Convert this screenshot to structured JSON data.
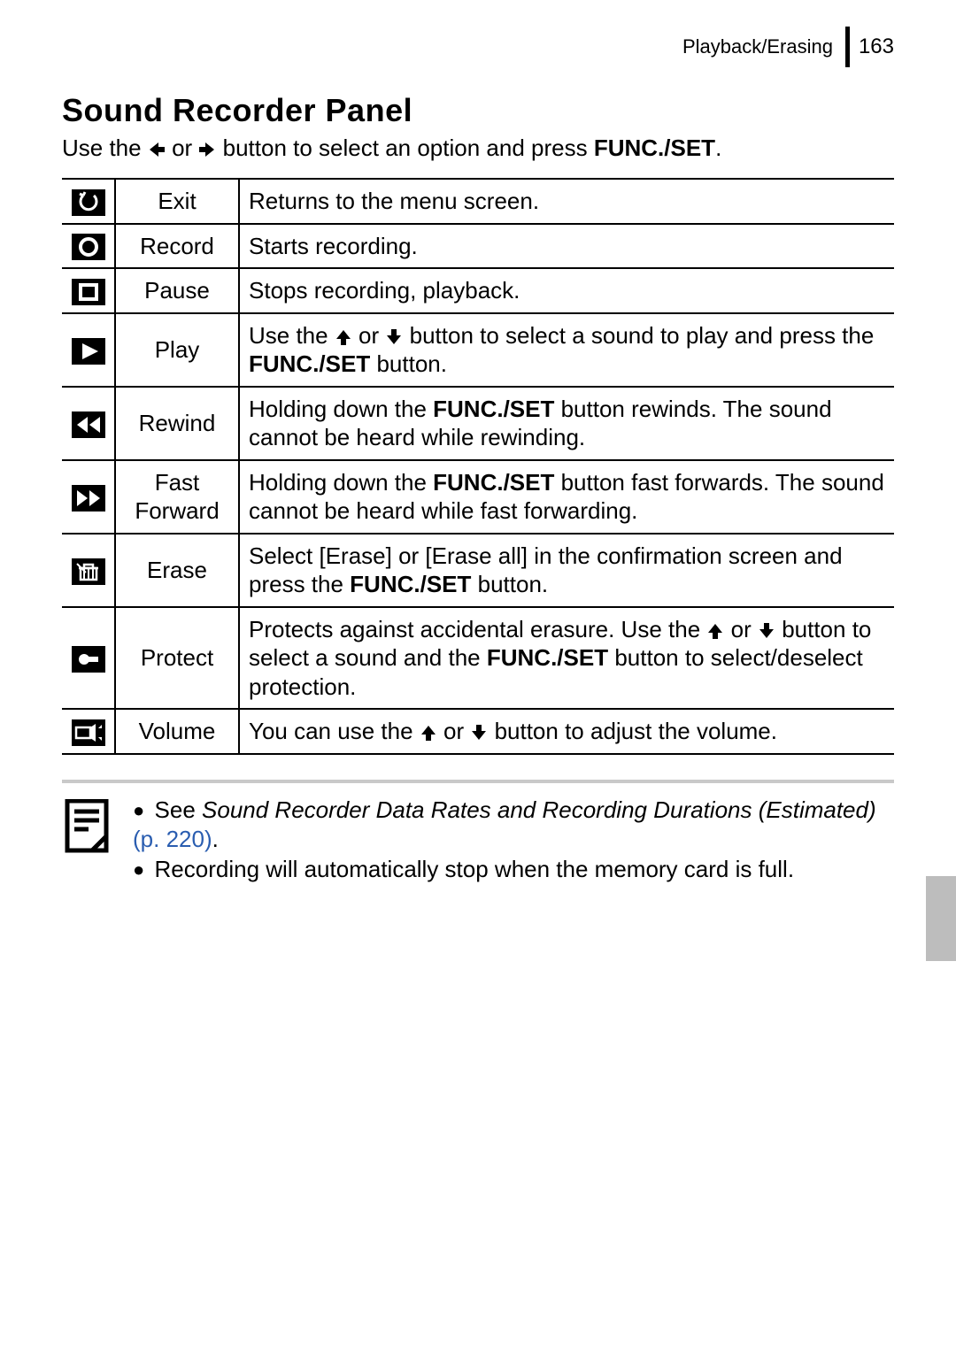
{
  "header": {
    "section": "Playback/Erasing",
    "page_number": "163"
  },
  "title": "Sound Recorder Panel",
  "intro": {
    "pre": "Use the ",
    "mid": " or ",
    "post": " button to select an option and press ",
    "func": "FUNC./SET",
    "end": "."
  },
  "rows": [
    {
      "label": "Exit",
      "desc_html": "Returns to the menu screen."
    },
    {
      "label": "Record",
      "desc_html": "Starts recording."
    },
    {
      "label": "Pause",
      "desc_html": "Stops recording, playback."
    },
    {
      "label": "Play",
      "desc_html": "Use the {UP} or {DOWN} button to select a sound to play and press the <b>FUNC./SET</b> button."
    },
    {
      "label": "Rewind",
      "desc_html": "Holding down the <b>FUNC./SET</b> button rewinds. The sound cannot be heard while rewinding."
    },
    {
      "label": "Fast Forward",
      "desc_html": "Holding down the <b>FUNC./SET</b> button fast forwards. The sound cannot be heard while fast forwarding."
    },
    {
      "label": "Erase",
      "desc_html": "Select [Erase] or [Erase all] in the confirmation screen and press the <b>FUNC./SET</b> button."
    },
    {
      "label": "Protect",
      "desc_html": "Protects against accidental erasure. Use the {UP} or {DOWN} button to select a sound and the <b>FUNC./SET</b> button to select/deselect protection."
    },
    {
      "label": "Volume",
      "desc_html": "You can use the {UP} or {DOWN} button to adjust the volume."
    }
  ],
  "notes": {
    "n1_pre": "See ",
    "n1_italic": "Sound Recorder Data Rates and Recording Durations (Estimated)",
    "n1_link": " (p. 220)",
    "n1_end": ".",
    "n2": "Recording will automatically stop when the memory card is full."
  },
  "icons": {
    "exit": "<svg viewBox='0 0 38 30' width='38' height='30'><rect width='38' height='30' fill='#000'/><path d='M13 7 A9 9 0 1 0 25 7' fill='none' stroke='#fff' stroke-width='3'/><path d='M13 7 L9 5 M13 7 L15 3' stroke='#fff' stroke-width='3' fill='none'/></svg>",
    "record": "<svg viewBox='0 0 38 30' width='38' height='30'><rect width='38' height='30' fill='#000'/><circle cx='19' cy='15' r='9' fill='none' stroke='#fff' stroke-width='4'/></svg>",
    "pause": "<svg viewBox='0 0 38 30' width='38' height='30'><rect width='38' height='30' fill='#000'/><rect x='10' y='7' width='18' height='16' fill='none' stroke='#fff' stroke-width='4'/></svg>",
    "play": "<svg viewBox='0 0 38 30' width='38' height='30'><rect width='38' height='30' fill='#000'/><polygon points='12,6 30,15 12,24' fill='#fff'/></svg>",
    "rewind": "<svg viewBox='0 0 38 30' width='38' height='30'><rect width='38' height='30' fill='#000'/><polygon points='18,6 6,15 18,24' fill='#fff'/><polygon points='32,6 20,15 32,24' fill='#fff'/></svg>",
    "fastforward": "<svg viewBox='0 0 38 30' width='38' height='30'><rect width='38' height='30' fill='#000'/><polygon points='6,6 18,15 6,24' fill='#fff'/><polygon points='20,6 32,15 20,24' fill='#fff'/></svg>",
    "erase": "<svg viewBox='0 0 38 30' width='38' height='30'><rect width='38' height='30' fill='#000'/><path d='M10 24 L10 11 L28 11 L28 24 Z' fill='none' stroke='#fff' stroke-width='2.5'/><path d='M14 11 L14 24 M19 11 L19 24 M24 11 L24 24' stroke='#fff' stroke-width='2'/><path d='M8 11 L30 11 M14 11 L14 7 L24 7 L24 11' fill='none' stroke='#fff' stroke-width='2.5'/><path d='M6 6 L16 16' stroke='#fff' stroke-width='2'/></svg>",
    "protect": "<svg viewBox='0 0 38 30' width='38' height='30'><rect width='38' height='30' fill='#000'/><circle cx='14' cy='15' r='6' fill='#fff'/><rect x='14' y='12' width='16' height='6' fill='#fff'/></svg>",
    "volume": "<svg viewBox='0 0 38 30' width='38' height='30'><rect width='38' height='30' fill='#000'/><rect x='5' y='9' width='16' height='12' fill='none' stroke='#fff' stroke-width='2.5'/><polygon points='21,9 27,5 27,25 21,21' fill='#fff'/><polygon points='30,10 34,6 34,10' fill='#fff'/><polygon points='30,20 34,24 34,20' fill='#fff'/></svg>",
    "note": "<svg viewBox='0 0 60 64' width='60' height='64'><rect x='6' y='2' width='44' height='56' fill='none' stroke='#000' stroke-width='5'/><line x1='14' y1='14' x2='42' y2='14' stroke='#000' stroke-width='5'/><line x1='14' y1='24' x2='42' y2='24' stroke='#000' stroke-width='5'/><line x1='14' y1='34' x2='30' y2='34' stroke='#000' stroke-width='5'/><polygon points='34,58 50,42 50,58' fill='#fff' stroke='#000' stroke-width='5'/></svg>",
    "arrow_left": "<svg class='inline-arrow' viewBox='0 0 20 20'><polygon points='12,2 2,10 12,18' fill='#000'/><rect x='10' y='7' width='9' height='6' fill='#000'/></svg>",
    "arrow_right": "<svg class='inline-arrow' viewBox='0 0 20 20'><polygon points='8,2 18,10 8,18' fill='#000'/><rect x='1' y='7' width='9' height='6' fill='#000'/></svg>",
    "arrow_up": "<svg class='inline-arrow' viewBox='0 0 20 20'><polygon points='2,12 10,2 18,12' fill='#000'/><rect x='7' y='10' width='6' height='9' fill='#000'/></svg>",
    "arrow_down": "<svg class='inline-arrow' viewBox='0 0 20 20'><polygon points='2,8 10,18 18,8' fill='#000'/><rect x='7' y='1' width='6' height='9' fill='#000'/></svg>"
  },
  "icon_keys": [
    "exit",
    "record",
    "pause",
    "play",
    "rewind",
    "fastforward",
    "erase",
    "protect",
    "volume"
  ]
}
